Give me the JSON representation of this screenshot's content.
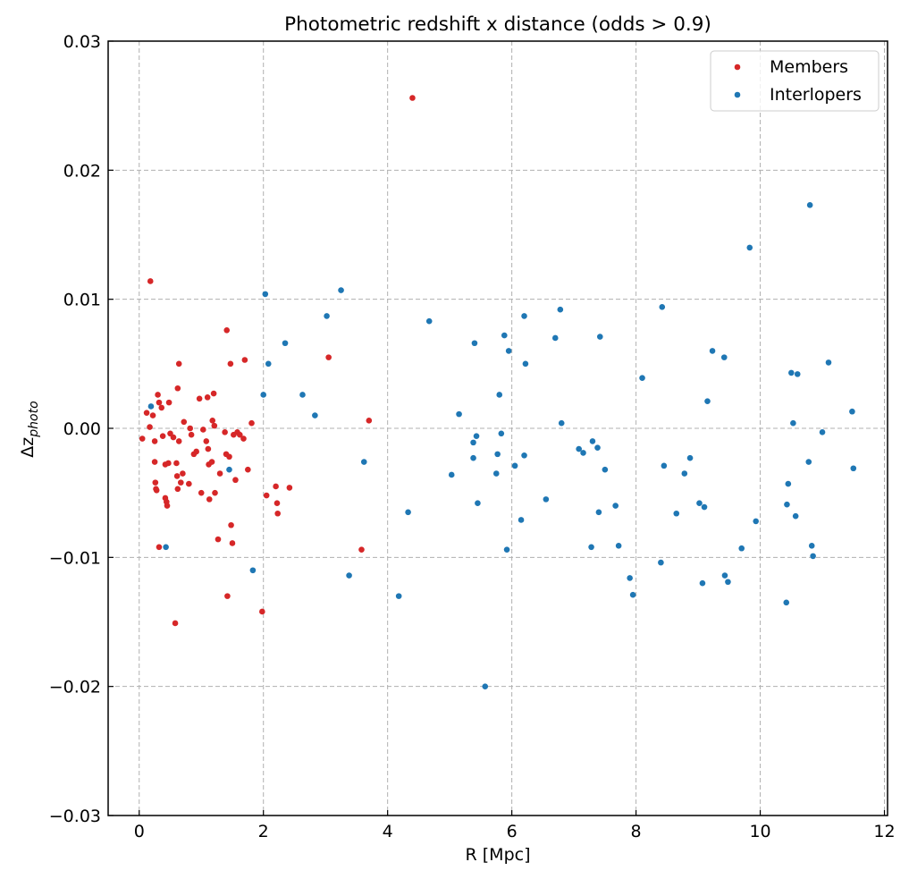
{
  "chart_data": {
    "type": "scatter",
    "title": "Photometric redshift x distance (odds > 0.9)",
    "xlabel": "R [Mpc]",
    "ylabel": "Δz",
    "ylabel_subscript": "photo",
    "xlim": [
      -0.5,
      12.05
    ],
    "ylim": [
      -0.03,
      0.03
    ],
    "xticks": [
      0,
      2,
      4,
      6,
      8,
      10,
      12
    ],
    "yticks": [
      -0.03,
      -0.02,
      -0.01,
      0.0,
      0.01,
      0.02,
      0.03
    ],
    "ytick_labels": [
      "−0.03",
      "−0.02",
      "−0.01",
      "0.00",
      "0.01",
      "0.02",
      "0.03"
    ],
    "grid": true,
    "legend_position": "top-right",
    "series": [
      {
        "name": "Members",
        "color": "#d62728",
        "points": [
          [
            0.05,
            -0.0008
          ],
          [
            0.12,
            0.0012
          ],
          [
            0.17,
            0.0001
          ],
          [
            0.18,
            0.0114
          ],
          [
            0.22,
            0.001
          ],
          [
            0.25,
            -0.001
          ],
          [
            0.25,
            -0.0026
          ],
          [
            0.26,
            -0.0042
          ],
          [
            0.27,
            -0.0047
          ],
          [
            0.28,
            -0.0048
          ],
          [
            0.3,
            0.0026
          ],
          [
            0.32,
            0.002
          ],
          [
            0.32,
            -0.0092
          ],
          [
            0.36,
            0.0016
          ],
          [
            0.38,
            -0.0006
          ],
          [
            0.42,
            -0.0028
          ],
          [
            0.42,
            -0.0054
          ],
          [
            0.44,
            -0.0057
          ],
          [
            0.45,
            -0.006
          ],
          [
            0.47,
            -0.0027
          ],
          [
            0.48,
            0.002
          ],
          [
            0.5,
            -0.0004
          ],
          [
            0.55,
            -0.0007
          ],
          [
            0.58,
            -0.0151
          ],
          [
            0.6,
            -0.0027
          ],
          [
            0.61,
            -0.0037
          ],
          [
            0.62,
            -0.0047
          ],
          [
            0.62,
            0.0031
          ],
          [
            0.64,
            -0.001
          ],
          [
            0.64,
            0.005
          ],
          [
            0.67,
            -0.0042
          ],
          [
            0.7,
            -0.0035
          ],
          [
            0.72,
            0.0005
          ],
          [
            0.8,
            -0.0043
          ],
          [
            0.82,
            0.0
          ],
          [
            0.84,
            -0.0005
          ],
          [
            0.88,
            -0.002
          ],
          [
            0.92,
            -0.0018
          ],
          [
            0.97,
            0.0023
          ],
          [
            1.0,
            -0.005
          ],
          [
            1.03,
            -0.0001
          ],
          [
            1.08,
            -0.001
          ],
          [
            1.1,
            0.0024
          ],
          [
            1.11,
            -0.0016
          ],
          [
            1.12,
            -0.0028
          ],
          [
            1.13,
            -0.0055
          ],
          [
            1.17,
            -0.0026
          ],
          [
            1.18,
            0.0006
          ],
          [
            1.2,
            0.0027
          ],
          [
            1.21,
            0.0002
          ],
          [
            1.22,
            -0.005
          ],
          [
            1.27,
            -0.0086
          ],
          [
            1.3,
            -0.0035
          ],
          [
            1.38,
            -0.0003
          ],
          [
            1.4,
            -0.002
          ],
          [
            1.41,
            0.0076
          ],
          [
            1.42,
            -0.013
          ],
          [
            1.45,
            -0.0022
          ],
          [
            1.47,
            0.005
          ],
          [
            1.48,
            -0.0075
          ],
          [
            1.5,
            -0.0089
          ],
          [
            1.52,
            -0.0005
          ],
          [
            1.55,
            -0.004
          ],
          [
            1.58,
            -0.0003
          ],
          [
            1.62,
            -0.0005
          ],
          [
            1.68,
            -0.0008
          ],
          [
            1.7,
            0.0053
          ],
          [
            1.75,
            -0.0032
          ],
          [
            1.81,
            0.0004
          ],
          [
            1.98,
            -0.0142
          ],
          [
            2.05,
            -0.0052
          ],
          [
            2.2,
            -0.0045
          ],
          [
            2.22,
            -0.0058
          ],
          [
            2.23,
            -0.0066
          ],
          [
            2.42,
            -0.0046
          ],
          [
            3.05,
            0.0055
          ],
          [
            3.58,
            -0.0094
          ],
          [
            3.7,
            0.0006
          ],
          [
            4.4,
            0.0256
          ]
        ]
      },
      {
        "name": "Interlopers",
        "color": "#1f77b4",
        "points": [
          [
            0.19,
            0.0017
          ],
          [
            0.43,
            -0.0092
          ],
          [
            1.45,
            -0.0032
          ],
          [
            1.83,
            -0.011
          ],
          [
            2.0,
            0.0026
          ],
          [
            2.03,
            0.0104
          ],
          [
            2.08,
            0.005
          ],
          [
            2.35,
            0.0066
          ],
          [
            2.63,
            0.0026
          ],
          [
            2.83,
            0.001
          ],
          [
            3.02,
            0.0087
          ],
          [
            3.25,
            0.0107
          ],
          [
            3.38,
            -0.0114
          ],
          [
            3.62,
            -0.0026
          ],
          [
            4.18,
            -0.013
          ],
          [
            4.33,
            -0.0065
          ],
          [
            4.67,
            0.0083
          ],
          [
            5.03,
            -0.0036
          ],
          [
            5.15,
            0.0011
          ],
          [
            5.38,
            -0.0011
          ],
          [
            5.38,
            -0.0023
          ],
          [
            5.4,
            0.0066
          ],
          [
            5.43,
            -0.0006
          ],
          [
            5.45,
            -0.0058
          ],
          [
            5.57,
            -0.02
          ],
          [
            5.75,
            -0.0035
          ],
          [
            5.77,
            -0.002
          ],
          [
            5.8,
            0.0026
          ],
          [
            5.83,
            -0.0004
          ],
          [
            5.88,
            0.0072
          ],
          [
            5.92,
            -0.0094
          ],
          [
            5.95,
            0.006
          ],
          [
            6.05,
            -0.0029
          ],
          [
            6.15,
            -0.0071
          ],
          [
            6.2,
            0.0087
          ],
          [
            6.2,
            -0.0021
          ],
          [
            6.22,
            0.005
          ],
          [
            6.55,
            -0.0055
          ],
          [
            6.7,
            0.007
          ],
          [
            6.78,
            0.0092
          ],
          [
            6.8,
            0.0004
          ],
          [
            7.08,
            -0.0016
          ],
          [
            7.15,
            -0.0019
          ],
          [
            7.28,
            -0.0092
          ],
          [
            7.3,
            -0.001
          ],
          [
            7.38,
            -0.0015
          ],
          [
            7.4,
            -0.0065
          ],
          [
            7.42,
            0.0071
          ],
          [
            7.5,
            -0.0032
          ],
          [
            7.67,
            -0.006
          ],
          [
            7.72,
            -0.0091
          ],
          [
            7.9,
            -0.0116
          ],
          [
            7.95,
            -0.0129
          ],
          [
            8.1,
            0.0039
          ],
          [
            8.4,
            -0.0104
          ],
          [
            8.42,
            0.0094
          ],
          [
            8.45,
            -0.0029
          ],
          [
            8.65,
            -0.0066
          ],
          [
            8.78,
            -0.0035
          ],
          [
            8.87,
            -0.0023
          ],
          [
            9.02,
            -0.0058
          ],
          [
            9.07,
            -0.012
          ],
          [
            9.1,
            -0.0061
          ],
          [
            9.15,
            0.0021
          ],
          [
            9.23,
            0.006
          ],
          [
            9.42,
            0.0055
          ],
          [
            9.43,
            -0.0114
          ],
          [
            9.48,
            -0.0119
          ],
          [
            9.7,
            -0.0093
          ],
          [
            9.83,
            0.014
          ],
          [
            9.93,
            -0.0072
          ],
          [
            10.42,
            -0.0135
          ],
          [
            10.43,
            -0.0059
          ],
          [
            10.45,
            -0.0043
          ],
          [
            10.5,
            0.0043
          ],
          [
            10.53,
            0.0004
          ],
          [
            10.57,
            -0.0068
          ],
          [
            10.6,
            0.0042
          ],
          [
            10.78,
            -0.0026
          ],
          [
            10.8,
            0.0173
          ],
          [
            10.83,
            -0.0091
          ],
          [
            10.85,
            -0.0099
          ],
          [
            11.0,
            -0.0003
          ],
          [
            11.1,
            0.0051
          ],
          [
            11.48,
            0.0013
          ],
          [
            11.5,
            -0.0031
          ]
        ]
      }
    ]
  }
}
